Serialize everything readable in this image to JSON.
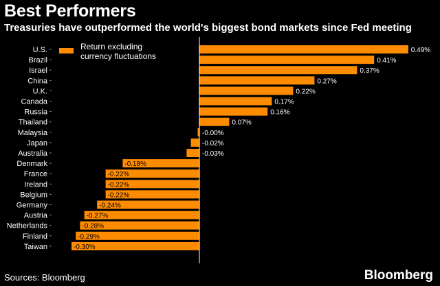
{
  "header": {
    "title": "Best Performers",
    "subtitle": "Treasuries have outperformed the world's biggest bond markets since Fed meeting"
  },
  "footer": {
    "source": "Sources: Bloomberg",
    "brand": "Bloomberg"
  },
  "colors": {
    "bar": "#FF8C00",
    "background": "#000000",
    "text": "#FFFFFF",
    "axis": "#FFFFFF"
  },
  "chart_data": {
    "type": "bar",
    "orientation": "horizontal",
    "legend": {
      "label_line1": "Return excluding",
      "label_line2": "currency fluctuations",
      "placement": "top-left"
    },
    "categories": [
      "U.S.",
      "Brazil",
      "Israel",
      "China",
      "U.K.",
      "Canada",
      "Russia",
      "Thailand",
      "Malaysia",
      "Japan",
      "Australia",
      "Denmark",
      "France",
      "Ireland",
      "Belgium",
      "Germany",
      "Austria",
      "Netherlands",
      "Finland",
      "Taiwan"
    ],
    "values": [
      0.49,
      0.41,
      0.37,
      0.27,
      0.22,
      0.17,
      0.16,
      0.07,
      -0.004,
      -0.02,
      -0.03,
      -0.18,
      -0.22,
      -0.22,
      -0.22,
      -0.24,
      -0.27,
      -0.28,
      -0.29,
      -0.3
    ],
    "value_labels": [
      "0.49%",
      "0.41%",
      "0.37%",
      "0.27%",
      "0.22%",
      "0.17%",
      "0.16%",
      "0.07%",
      "-0.00%",
      "-0.02%",
      "-0.03%",
      "-0.18%",
      "-0.22%",
      "-0.22%",
      "-0.22%",
      "-0.24%",
      "-0.27%",
      "-0.28%",
      "-0.29%",
      "-0.30%"
    ],
    "xlim": [
      -0.3,
      0.49
    ],
    "grid": false
  }
}
